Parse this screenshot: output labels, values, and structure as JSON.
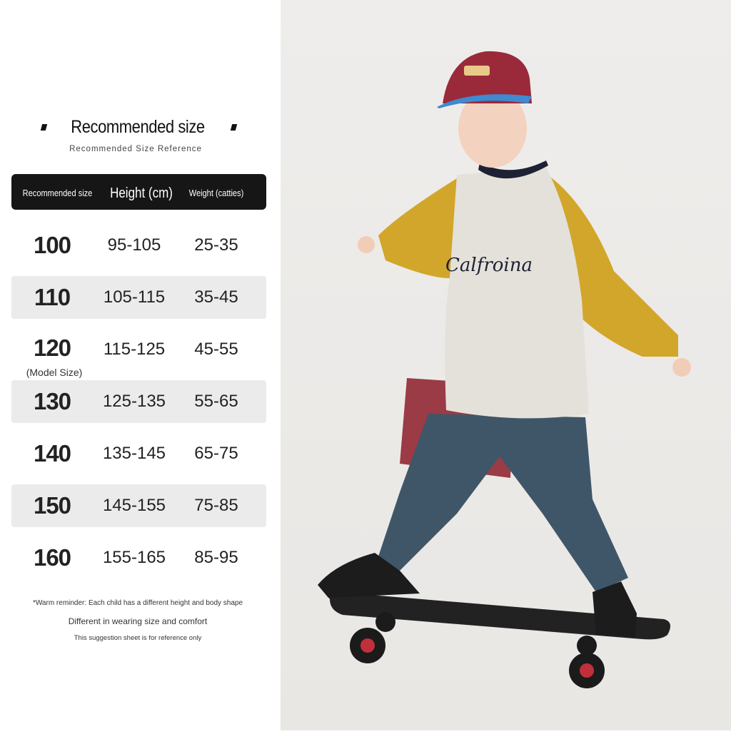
{
  "title": "Recommended size",
  "subtitle": "Recommended Size Reference",
  "headers": [
    "Recommended size",
    "Height (cm)",
    "Weight (catties)"
  ],
  "rows": [
    {
      "size": "100",
      "height": "95-105",
      "weight": "25-35"
    },
    {
      "size": "110",
      "height": "105-115",
      "weight": "35-45"
    },
    {
      "size": "120",
      "height": "115-125",
      "weight": "45-55",
      "note": "(Model Size)"
    },
    {
      "size": "130",
      "height": "125-135",
      "weight": "55-65"
    },
    {
      "size": "140",
      "height": "135-145",
      "weight": "65-75"
    },
    {
      "size": "150",
      "height": "145-155",
      "weight": "75-85"
    },
    {
      "size": "160",
      "height": "155-165",
      "weight": "85-95"
    }
  ],
  "footer": {
    "reminder": "*Warm reminder: Each child has a different height and body shape",
    "line2": "Different in wearing size and comfort",
    "line3": "This suggestion sheet is for reference only"
  },
  "photo": {
    "shirt_text": "Calfroina"
  },
  "colors": {
    "header_bg": "#161616",
    "row_alt": "#ebebeb",
    "sleeve": "#d4a92a",
    "cap": "#9a2a3a"
  }
}
